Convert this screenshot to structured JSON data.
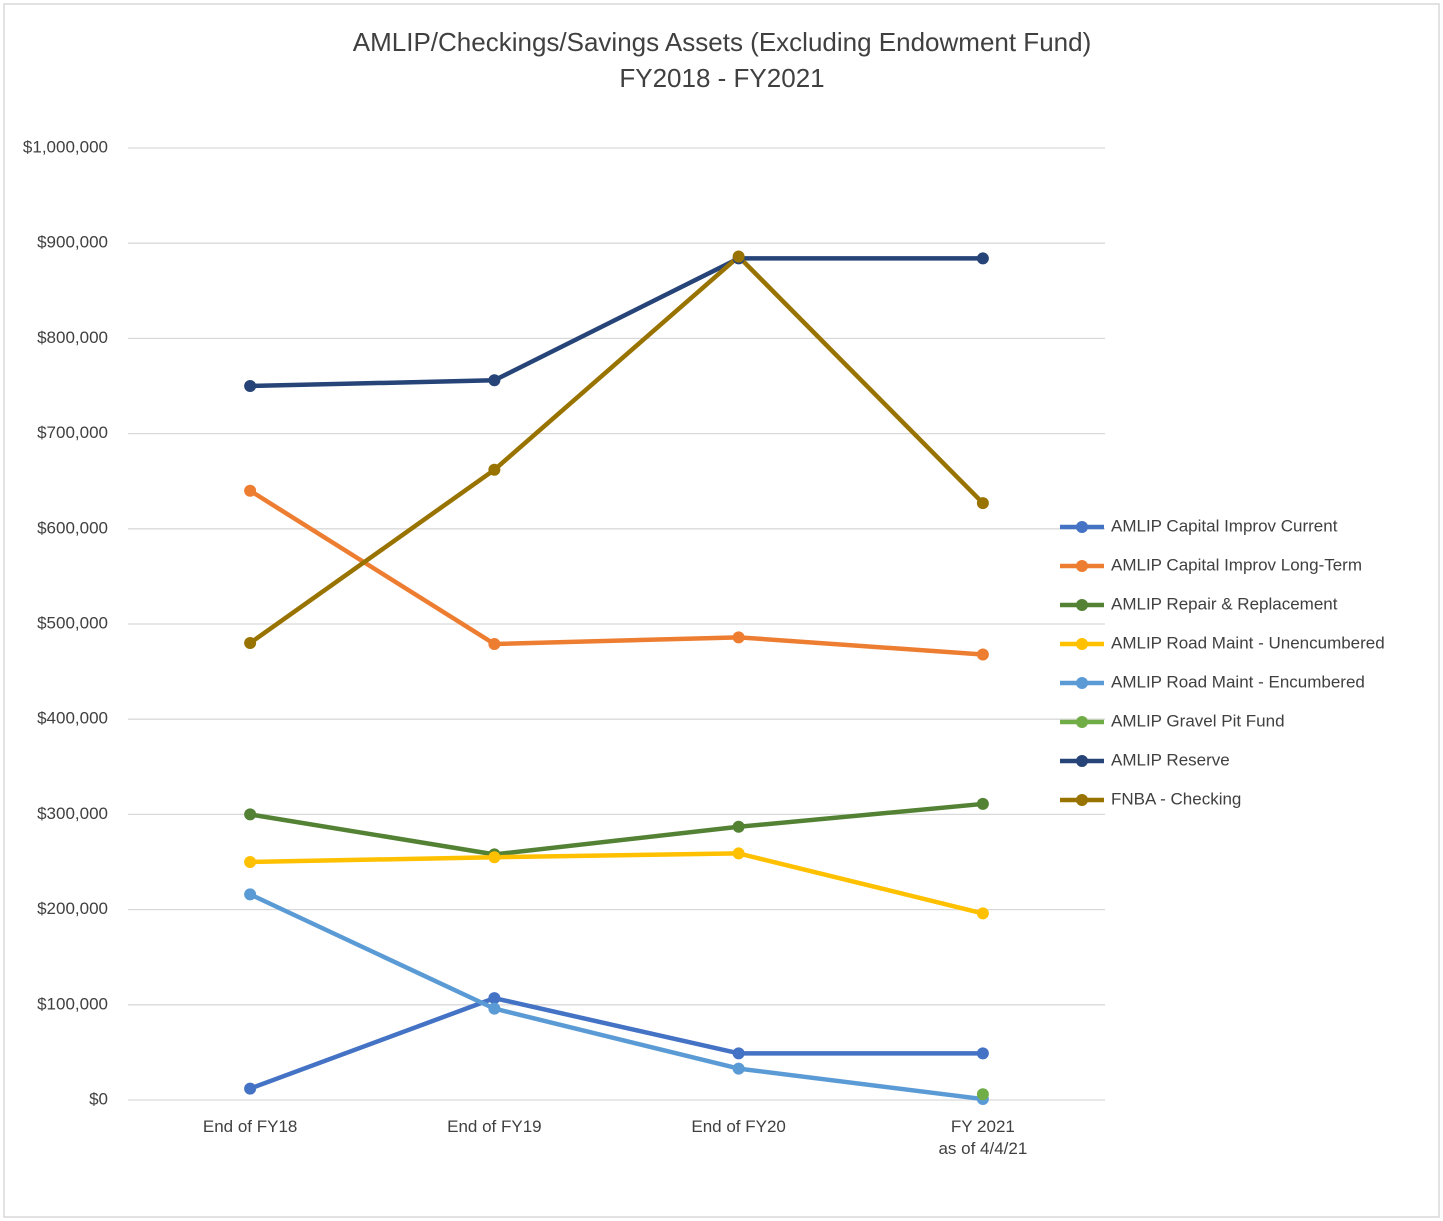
{
  "chart_data": {
    "type": "line",
    "title": "AMLIP/Checkings/Savings Assets (Excluding Endowment Fund)",
    "subtitle": "FY2018 - FY2021",
    "categories": [
      "End of FY18",
      "End of FY19",
      "End of FY20",
      "FY 2021\nas of 4/4/21"
    ],
    "series": [
      {
        "name": "AMLIP Capital Improv Current",
        "color": "#4472c4",
        "values": [
          12000,
          107000,
          49000,
          49000
        ]
      },
      {
        "name": "AMLIP Capital Improv Long-Term",
        "color": "#ed7d31",
        "values": [
          640000,
          479000,
          486000,
          468000
        ]
      },
      {
        "name": "AMLIP Repair & Replacement",
        "color": "#548235",
        "values": [
          300000,
          258000,
          287000,
          311000
        ]
      },
      {
        "name": "AMLIP Road Maint - Unencumbered",
        "color": "#ffc000",
        "values": [
          250000,
          255000,
          259000,
          196000
        ]
      },
      {
        "name": "AMLIP Road Maint - Encumbered",
        "color": "#5b9bd5",
        "values": [
          216000,
          96000,
          33000,
          1000
        ]
      },
      {
        "name": "AMLIP Gravel Pit Fund",
        "color": "#70ad47",
        "values": [
          null,
          null,
          null,
          6000
        ]
      },
      {
        "name": "AMLIP Reserve",
        "color": "#264478",
        "values": [
          750000,
          756000,
          884000,
          884000
        ]
      },
      {
        "name": "FNBA - Checking",
        "color": "#997300",
        "values": [
          480000,
          662000,
          886000,
          627000
        ]
      }
    ],
    "ylim": [
      0,
      1000000
    ],
    "yticks": [
      {
        "value": 0,
        "label": "$0"
      },
      {
        "value": 100000,
        "label": "$100,000"
      },
      {
        "value": 200000,
        "label": "$200,000"
      },
      {
        "value": 300000,
        "label": "$300,000"
      },
      {
        "value": 400000,
        "label": "$400,000"
      },
      {
        "value": 500000,
        "label": "$500,000"
      },
      {
        "value": 600000,
        "label": "$600,000"
      },
      {
        "value": 700000,
        "label": "$700,000"
      },
      {
        "value": 800000,
        "label": "$800,000"
      },
      {
        "value": 900000,
        "label": "$900,000"
      },
      {
        "value": 1000000,
        "label": "$1,000,000"
      }
    ],
    "grid": true,
    "legend": "right"
  }
}
